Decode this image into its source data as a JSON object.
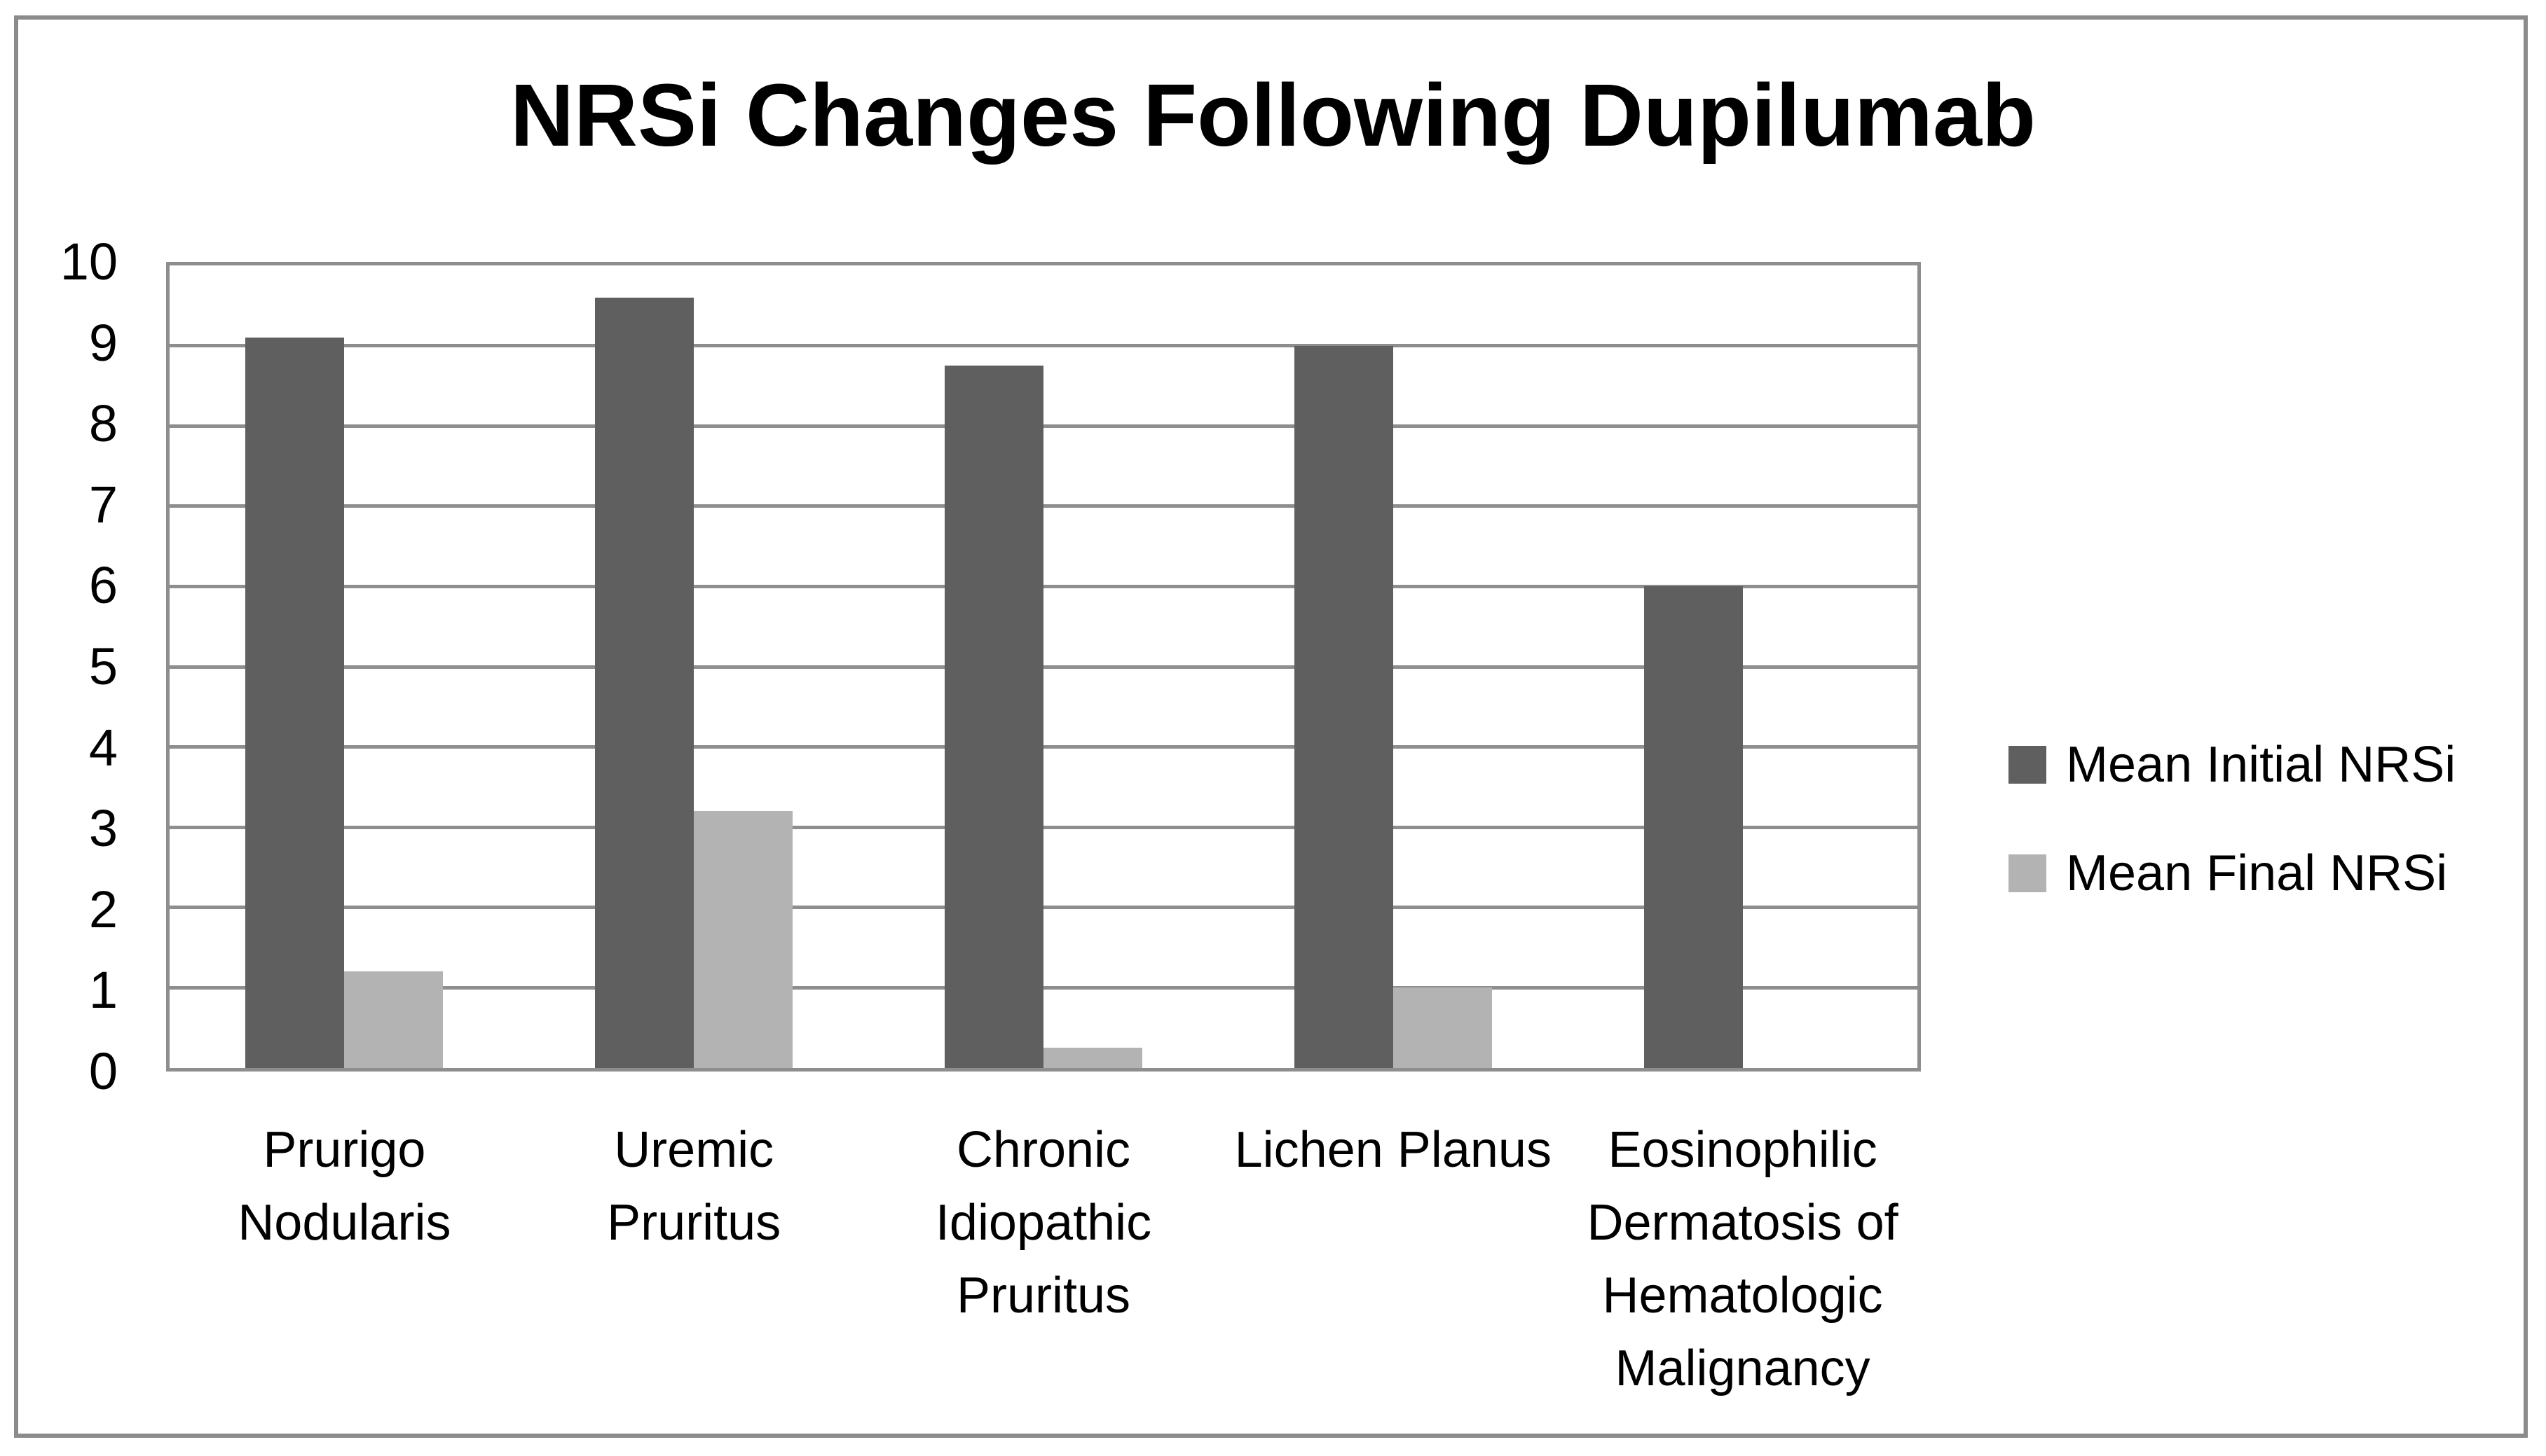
{
  "chart_data": {
    "type": "bar",
    "title": "NRSi Changes Following Dupilumab",
    "categories": [
      {
        "label": "Prurigo\nNodularis"
      },
      {
        "label": "Uremic\nPruritus"
      },
      {
        "label": "Chronic\nIdiopathic\nPruritus"
      },
      {
        "label": "Lichen Planus"
      },
      {
        "label": "Eosinophilic\nDermatosis of\nHematologic\nMalignancy"
      }
    ],
    "series": [
      {
        "name": "Mean Initial NRSi",
        "color": "#5f5f5f",
        "values": [
          9.1,
          9.6,
          8.75,
          9.0,
          6.0
        ]
      },
      {
        "name": "Mean Final NRSi",
        "color": "#b3b3b3",
        "values": [
          1.2,
          3.2,
          0.25,
          1.0,
          0
        ]
      }
    ],
    "xlabel": "",
    "ylabel": "",
    "ylim": [
      0,
      10
    ],
    "yticks": [
      0,
      1,
      2,
      3,
      4,
      5,
      6,
      7,
      8,
      9,
      10
    ],
    "grid": "horizontal",
    "gridline_color": "#8e8e8e",
    "frame_color": "#8b8b8b",
    "legend_position": "right"
  }
}
